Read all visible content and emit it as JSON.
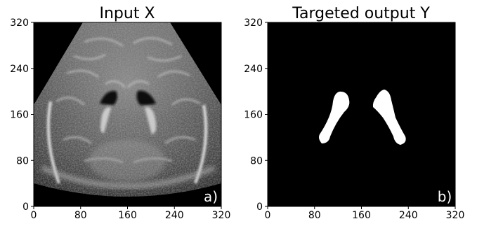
{
  "chart_data": [
    {
      "type": "image",
      "title": "Input X",
      "panel_label": "a)",
      "xlim": [
        0,
        320
      ],
      "ylim": [
        0,
        320
      ],
      "xticks": [
        0,
        80,
        160,
        240,
        320
      ],
      "yticks": [
        0,
        80,
        160,
        240,
        320
      ],
      "content": "grayscale ultrasound image"
    },
    {
      "type": "image",
      "title": "Targeted output Y",
      "panel_label": "b)",
      "xlim": [
        0,
        320
      ],
      "ylim": [
        0,
        320
      ],
      "xticks": [
        0,
        80,
        160,
        240,
        320
      ],
      "yticks": [
        0,
        80,
        160,
        240,
        320
      ],
      "content": "binary segmentation mask",
      "colors": {
        "background": "#000000",
        "mask": "#ffffff"
      }
    }
  ]
}
